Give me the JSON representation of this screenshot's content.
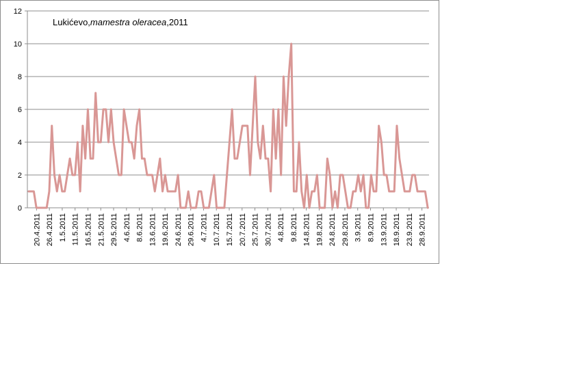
{
  "chart_data": {
    "type": "line",
    "title": {
      "prefix": "Lukićevo,",
      "italic": "mamestra oleracea",
      "suffix": ",2011"
    },
    "xlabel": "",
    "ylabel": "",
    "ylim": [
      0,
      12
    ],
    "yticks": [
      "0",
      "2",
      "4",
      "6",
      "8",
      "10",
      "12"
    ],
    "grid": true,
    "legend": "none",
    "line_color": "#d99795",
    "x_tick_labels": [
      "20.4.2011",
      "26.4.2011",
      "1.5.2011",
      "11.5.2011",
      "16.5.2011",
      "21.5.2011",
      "29.5.2011",
      "4.6.2011",
      "8.6.2011",
      "13.6.2011",
      "19.6.2011",
      "24.6.2011",
      "29.6.2011",
      "4.7.2011",
      "10.7.2011",
      "15.7.2011",
      "20.7.2011",
      "25.7.2011",
      "30.7.2011",
      "4.8.2011",
      "9.8.2011",
      "14.8.2011",
      "19.8.2011",
      "24.8.2011",
      "29.8.2011",
      "3.9.2011",
      "8.9.2011",
      "13.9.2011",
      "18.9.2011",
      "23.9.2011",
      "28.9.2011"
    ],
    "series": [
      {
        "values": [
          1,
          1,
          1,
          0,
          0,
          0,
          0,
          0,
          1,
          5,
          2,
          1,
          2,
          1,
          1,
          2,
          3,
          2,
          2,
          4,
          1,
          5,
          3,
          6,
          3,
          3,
          7,
          4,
          4,
          6,
          6,
          4,
          6,
          4,
          3,
          2,
          2,
          6,
          5,
          4,
          4,
          3,
          5,
          6,
          3,
          3,
          2,
          2,
          2,
          1,
          2,
          3,
          1,
          2,
          1,
          1,
          1,
          1,
          2,
          0,
          0,
          0,
          1,
          0,
          0,
          0,
          1,
          1,
          0,
          0,
          0,
          1,
          2,
          0,
          0,
          0,
          0,
          2,
          4,
          6,
          3,
          3,
          4,
          5,
          5,
          5,
          2,
          5,
          8,
          4,
          3,
          5,
          3,
          3,
          1,
          6,
          3,
          6,
          2,
          8,
          5,
          8,
          10,
          1,
          1,
          4,
          1,
          0,
          2,
          0,
          1,
          1,
          2,
          0,
          0,
          0,
          3,
          2,
          0,
          1,
          0,
          2,
          2,
          1,
          0,
          0,
          1,
          1,
          2,
          1,
          2,
          0,
          0,
          2,
          1,
          1,
          5,
          4,
          2,
          2,
          1,
          1,
          1,
          5,
          3,
          2,
          1,
          1,
          1,
          2,
          2,
          1,
          1,
          1,
          1,
          0
        ]
      }
    ]
  }
}
